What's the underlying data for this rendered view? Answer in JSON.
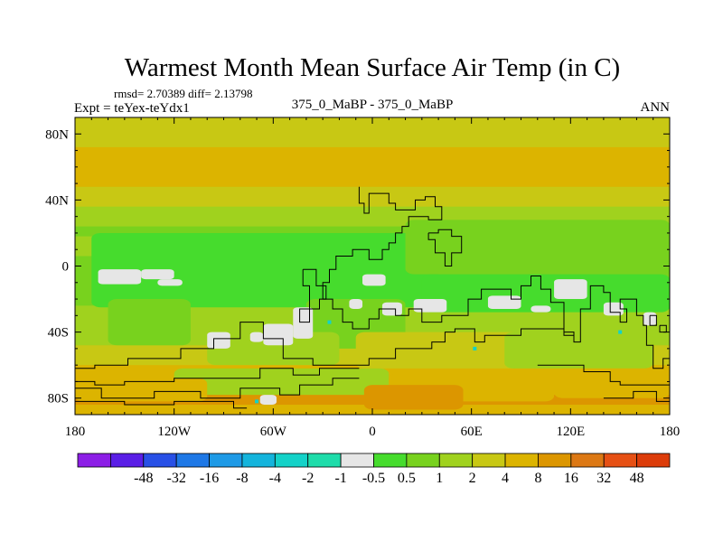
{
  "chart_data": {
    "type": "heatmap",
    "title": "Warmest Month Mean Surface Air Temp (in C)",
    "stats_line": "rmsd= 2.70389 diff= 2.13798",
    "left_label": "Expt = teYex-teYdx1",
    "center_label": "375_0_MaBP - 375_0_MaBP",
    "right_label": "ANN",
    "x_ticks": [
      {
        "value": -180,
        "label": "180"
      },
      {
        "value": -120,
        "label": "120W"
      },
      {
        "value": -60,
        "label": "60W"
      },
      {
        "value": 0,
        "label": "0"
      },
      {
        "value": 60,
        "label": "60E"
      },
      {
        "value": 120,
        "label": "120E"
      },
      {
        "value": 180,
        "label": "180"
      }
    ],
    "y_ticks": [
      {
        "value": 80,
        "label": "80N"
      },
      {
        "value": 40,
        "label": "40N"
      },
      {
        "value": 0,
        "label": "0"
      },
      {
        "value": -40,
        "label": "40S"
      },
      {
        "value": -80,
        "label": "80S"
      }
    ],
    "xlim": [
      -180,
      180
    ],
    "ylim": [
      -90,
      90
    ],
    "colorbar": {
      "colors": [
        "#8c1ee6",
        "#5a1ee6",
        "#2850e6",
        "#1e78e6",
        "#1e9ae6",
        "#14b4dc",
        "#14d2c8",
        "#1edcaa",
        "#e6e6e6",
        "#46dc2d",
        "#78d21e",
        "#a0d21e",
        "#c8c814",
        "#dcb400",
        "#dc9600",
        "#dc7814",
        "#e65014",
        "#dc3c0a"
      ],
      "labels": [
        "-48",
        "-32",
        "-16",
        "-8",
        "-4",
        "-2",
        "-1",
        "-0.5",
        "0.5",
        "1",
        "2",
        "4",
        "8",
        "16",
        "32",
        "48"
      ]
    },
    "band_lats": [
      90,
      84,
      78,
      72,
      66,
      60,
      54,
      48,
      42,
      36,
      30,
      24,
      18,
      12,
      6,
      0,
      -6,
      -12,
      -18,
      -24,
      -30,
      -36,
      -42,
      -48,
      -54,
      -60,
      -66,
      -72,
      -78,
      -84,
      -90
    ],
    "band_bins": [
      12,
      12,
      12,
      13,
      13,
      13,
      13,
      12,
      12,
      11,
      11,
      10,
      11,
      11,
      10,
      10,
      10,
      10,
      10,
      11,
      11,
      11,
      11,
      12,
      12,
      13,
      13,
      13,
      14,
      13
    ],
    "patches": [
      {
        "lon": [
          -170,
          40
        ],
        "lat": [
          20,
          -25
        ],
        "bin": 9
      },
      {
        "lon": [
          -40,
          20
        ],
        "lat": [
          -20,
          -50
        ],
        "bin": 10
      },
      {
        "lon": [
          -160,
          -110
        ],
        "lat": [
          -20,
          -48
        ],
        "bin": 10
      },
      {
        "lon": [
          20,
          180
        ],
        "lat": [
          28,
          -5
        ],
        "bin": 10
      },
      {
        "lon": [
          30,
          180
        ],
        "lat": [
          -5,
          -28
        ],
        "bin": 9
      },
      {
        "lon": [
          -100,
          -20
        ],
        "lat": [
          -40,
          -60
        ],
        "bin": 11
      },
      {
        "lon": [
          -10,
          90
        ],
        "lat": [
          -40,
          -62
        ],
        "bin": 12
      },
      {
        "lon": [
          80,
          170
        ],
        "lat": [
          -40,
          -62
        ],
        "bin": 11
      },
      {
        "lon": [
          -120,
          10
        ],
        "lat": [
          -62,
          -78
        ],
        "bin": 11
      },
      {
        "lon": [
          10,
          110
        ],
        "lat": [
          -65,
          -82
        ],
        "bin": 13
      },
      {
        "lon": [
          110,
          180
        ],
        "lat": [
          -62,
          -80
        ],
        "bin": 13
      },
      {
        "lon": [
          -180,
          -100
        ],
        "lat": [
          -68,
          -82
        ],
        "bin": 13
      },
      {
        "lon": [
          -5,
          55
        ],
        "lat": [
          -72,
          -87
        ],
        "bin": 14
      }
    ],
    "white_patches": [
      [
        -166,
        -2,
        -140,
        -11
      ],
      [
        -140,
        -2,
        -120,
        -8
      ],
      [
        -130,
        -8,
        -115,
        -12
      ],
      [
        -66,
        -35,
        -48,
        -48
      ],
      [
        -48,
        -25,
        -36,
        -44
      ],
      [
        -100,
        -40,
        -86,
        -50
      ],
      [
        -6,
        -5,
        8,
        -12
      ],
      [
        -14,
        -20,
        -6,
        -26
      ],
      [
        6,
        -22,
        18,
        -30
      ],
      [
        25,
        -20,
        45,
        -28
      ],
      [
        70,
        -18,
        90,
        -26
      ],
      [
        110,
        -8,
        130,
        -20
      ],
      [
        96,
        -24,
        108,
        -28
      ],
      [
        140,
        -22,
        152,
        -30
      ],
      [
        164,
        -28,
        172,
        -36
      ],
      [
        -68,
        -78,
        -58,
        -84
      ],
      [
        -74,
        -40,
        -66,
        -46
      ]
    ],
    "cyan_marks": [
      [
        -26,
        -34
      ],
      [
        62,
        -50
      ],
      [
        -70,
        -82
      ],
      [
        150,
        -40
      ]
    ],
    "outlines": [
      [
        [
          -8,
          48
        ],
        [
          -8,
          38
        ],
        [
          -5,
          38
        ],
        [
          -5,
          32
        ],
        [
          -2,
          32
        ],
        [
          -2,
          44
        ],
        [
          10,
          44
        ],
        [
          10,
          38
        ],
        [
          14,
          38
        ],
        [
          14,
          34
        ],
        [
          26,
          34
        ],
        [
          26,
          40
        ],
        [
          32,
          40
        ],
        [
          32,
          42
        ],
        [
          38,
          42
        ],
        [
          38,
          36
        ],
        [
          42,
          36
        ],
        [
          42,
          28
        ],
        [
          34,
          28
        ],
        [
          34,
          30
        ],
        [
          22,
          30
        ],
        [
          22,
          24
        ],
        [
          18,
          24
        ],
        [
          18,
          20
        ],
        [
          14,
          20
        ],
        [
          14,
          14
        ],
        [
          10,
          14
        ],
        [
          10,
          10
        ],
        [
          6,
          10
        ],
        [
          6,
          4
        ],
        [
          -2,
          4
        ],
        [
          -2,
          10
        ],
        [
          -12,
          10
        ],
        [
          -12,
          6
        ],
        [
          -22,
          6
        ],
        [
          -22,
          -2
        ],
        [
          -26,
          -2
        ],
        [
          -26,
          -10
        ],
        [
          -30,
          -10
        ],
        [
          -30,
          -20
        ],
        [
          -24,
          -20
        ],
        [
          -24,
          -26
        ],
        [
          -18,
          -26
        ],
        [
          -18,
          -34
        ],
        [
          -12,
          -34
        ],
        [
          -12,
          -38
        ],
        [
          -2,
          -38
        ],
        [
          -2,
          -32
        ],
        [
          4,
          -32
        ],
        [
          4,
          -26
        ],
        [
          14,
          -26
        ],
        [
          14,
          -30
        ],
        [
          22,
          -30
        ],
        [
          22,
          -26
        ],
        [
          30,
          -26
        ],
        [
          30,
          -34
        ],
        [
          42,
          -34
        ],
        [
          42,
          -30
        ],
        [
          58,
          -30
        ],
        [
          58,
          -20
        ],
        [
          66,
          -20
        ],
        [
          66,
          -14
        ],
        [
          84,
          -14
        ],
        [
          84,
          -20
        ],
        [
          90,
          -20
        ],
        [
          90,
          -12
        ],
        [
          96,
          -12
        ],
        [
          96,
          -6
        ],
        [
          102,
          -6
        ],
        [
          102,
          -14
        ],
        [
          108,
          -14
        ],
        [
          108,
          -22
        ],
        [
          116,
          -22
        ],
        [
          116,
          -40
        ],
        [
          122,
          -40
        ],
        [
          122,
          -46
        ],
        [
          126,
          -46
        ],
        [
          126,
          -26
        ],
        [
          132,
          -26
        ],
        [
          132,
          -12
        ],
        [
          140,
          -12
        ],
        [
          140,
          -16
        ],
        [
          144,
          -16
        ],
        [
          144,
          -28
        ],
        [
          150,
          -28
        ],
        [
          150,
          -34
        ],
        [
          154,
          -34
        ],
        [
          154,
          -26
        ],
        [
          150,
          -26
        ],
        [
          150,
          -20
        ],
        [
          160,
          -20
        ],
        [
          160,
          -30
        ],
        [
          164,
          -30
        ],
        [
          164,
          -36
        ],
        [
          166,
          -36
        ],
        [
          166,
          -48
        ],
        [
          170,
          -48
        ],
        [
          170,
          -62
        ],
        [
          176,
          -62
        ],
        [
          176,
          -56
        ],
        [
          180,
          -56
        ]
      ],
      [
        [
          -42,
          -2
        ],
        [
          -34,
          -2
        ],
        [
          -34,
          -12
        ],
        [
          -28,
          -12
        ],
        [
          -28,
          -20
        ],
        [
          -32,
          -20
        ],
        [
          -32,
          -26
        ],
        [
          -38,
          -26
        ],
        [
          -38,
          -34
        ],
        [
          -44,
          -34
        ],
        [
          -44,
          -26
        ],
        [
          -38,
          -26
        ],
        [
          -38,
          -12
        ],
        [
          -42,
          -12
        ],
        [
          -42,
          -2
        ]
      ],
      [
        [
          -180,
          -62
        ],
        [
          -168,
          -62
        ],
        [
          -168,
          -60
        ],
        [
          -148,
          -60
        ],
        [
          -148,
          -56
        ],
        [
          -116,
          -56
        ],
        [
          -116,
          -50
        ],
        [
          -96,
          -50
        ],
        [
          -96,
          -44
        ],
        [
          -80,
          -44
        ],
        [
          -80,
          -34
        ],
        [
          -66,
          -34
        ],
        [
          -66,
          -44
        ],
        [
          -54,
          -44
        ],
        [
          -54,
          -56
        ],
        [
          -36,
          -56
        ],
        [
          -36,
          -60
        ],
        [
          -2,
          -60
        ],
        [
          -2,
          -56
        ],
        [
          14,
          -56
        ],
        [
          14,
          -50
        ],
        [
          36,
          -50
        ],
        [
          36,
          -46
        ],
        [
          44,
          -46
        ],
        [
          44,
          -40
        ],
        [
          50,
          -40
        ],
        [
          50,
          -38
        ],
        [
          62,
          -38
        ],
        [
          62,
          -46
        ],
        [
          68,
          -46
        ],
        [
          68,
          -42
        ],
        [
          90,
          -42
        ],
        [
          90,
          -38
        ],
        [
          116,
          -38
        ],
        [
          116,
          -42
        ],
        [
          122,
          -42
        ]
      ],
      [
        [
          -180,
          -70
        ],
        [
          -168,
          -70
        ],
        [
          -168,
          -72
        ],
        [
          -150,
          -72
        ],
        [
          -150,
          -70
        ],
        [
          -120,
          -70
        ],
        [
          -120,
          -68
        ],
        [
          -68,
          -68
        ],
        [
          -68,
          -62
        ],
        [
          -48,
          -62
        ],
        [
          -48,
          -66
        ],
        [
          -32,
          -66
        ],
        [
          -32,
          -62
        ],
        [
          -8,
          -62
        ]
      ],
      [
        [
          -180,
          -74
        ],
        [
          -164,
          -74
        ],
        [
          -164,
          -80
        ],
        [
          -132,
          -80
        ],
        [
          -132,
          -76
        ],
        [
          -104,
          -76
        ],
        [
          -104,
          -80
        ],
        [
          -80,
          -80
        ],
        [
          -80,
          -74
        ],
        [
          -56,
          -74
        ],
        [
          -56,
          -78
        ],
        [
          -44,
          -78
        ],
        [
          -44,
          -72
        ],
        [
          -24,
          -72
        ],
        [
          -24,
          -68
        ],
        [
          -8,
          -68
        ]
      ],
      [
        [
          -180,
          -82
        ],
        [
          -150,
          -82
        ],
        [
          -150,
          -84
        ],
        [
          -120,
          -84
        ],
        [
          -120,
          -82
        ],
        [
          -84,
          -82
        ],
        [
          -84,
          -86
        ],
        [
          -76,
          -86
        ]
      ],
      [
        [
          100,
          -60
        ],
        [
          128,
          -60
        ],
        [
          128,
          -64
        ],
        [
          144,
          -64
        ],
        [
          144,
          -70
        ],
        [
          150,
          -70
        ],
        [
          150,
          -72
        ],
        [
          180,
          -72
        ]
      ],
      [
        [
          140,
          -80
        ],
        [
          158,
          -80
        ],
        [
          158,
          -76
        ],
        [
          172,
          -76
        ],
        [
          172,
          -82
        ],
        [
          180,
          -82
        ]
      ],
      [
        [
          34,
          20
        ],
        [
          34,
          16
        ],
        [
          38,
          16
        ],
        [
          38,
          8
        ],
        [
          44,
          8
        ],
        [
          44,
          0
        ],
        [
          48,
          0
        ],
        [
          48,
          8
        ],
        [
          54,
          8
        ],
        [
          54,
          18
        ],
        [
          48,
          18
        ],
        [
          48,
          22
        ],
        [
          40,
          22
        ],
        [
          40,
          20
        ],
        [
          34,
          20
        ]
      ],
      [
        [
          168,
          -30
        ],
        [
          172,
          -30
        ],
        [
          172,
          -36
        ],
        [
          168,
          -36
        ],
        [
          168,
          -30
        ]
      ],
      [
        [
          174,
          -36
        ],
        [
          178,
          -36
        ],
        [
          178,
          -40
        ],
        [
          174,
          -40
        ],
        [
          174,
          -36
        ]
      ]
    ]
  }
}
